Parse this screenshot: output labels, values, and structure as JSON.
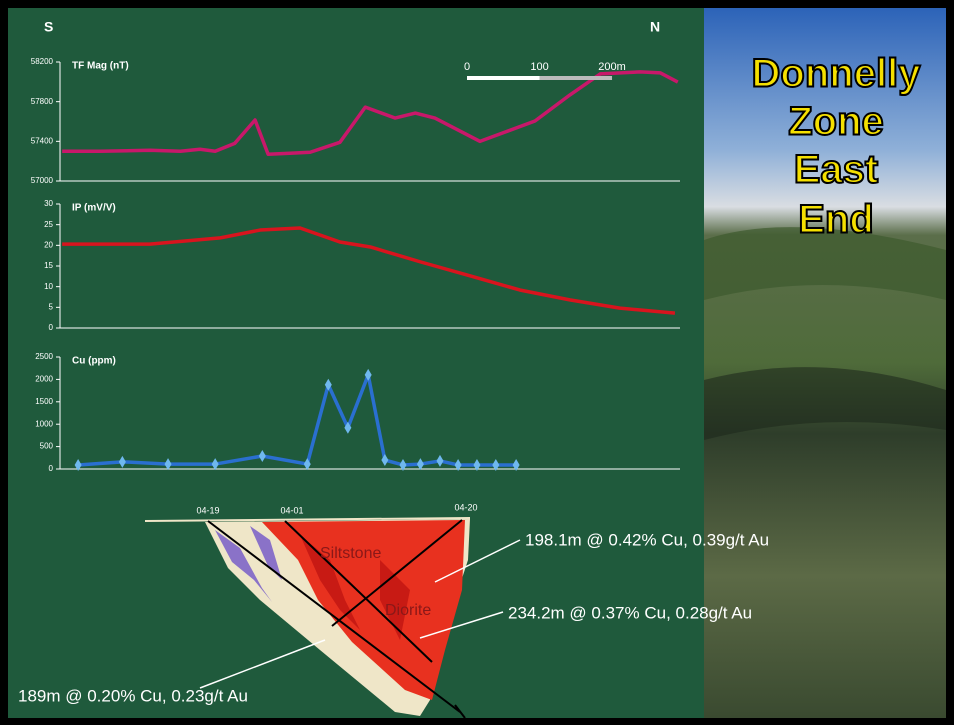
{
  "chart_data": [
    {
      "type": "line",
      "y_label": "TF Mag (nT)",
      "color": "#c8186a",
      "x": [
        3,
        55,
        124,
        166,
        193,
        214,
        241,
        269,
        287,
        317,
        345,
        386,
        421,
        462,
        490,
        517,
        579,
        607,
        655,
        703,
        745,
        800,
        828,
        852
      ],
      "values": [
        57300,
        57300,
        57310,
        57300,
        57320,
        57300,
        57380,
        57615,
        57270,
        57280,
        57290,
        57390,
        57745,
        57635,
        57685,
        57635,
        57400,
        57475,
        57605,
        57867,
        58080,
        58100,
        58090,
        57998
      ],
      "xlim": [
        0,
        855
      ],
      "ylim": [
        57000,
        58200
      ],
      "yticks": [
        57000,
        57400,
        57800,
        58200
      ],
      "scale_bar": {
        "ticks": [
          0,
          100,
          {
            "value": 200,
            "label": "200m"
          }
        ]
      }
    },
    {
      "type": "line",
      "y_label": "IP (mV/V)",
      "color": "#d8141e",
      "x": [
        3,
        124,
        221,
        276,
        331,
        386,
        428,
        497,
        566,
        634,
        703,
        772,
        848
      ],
      "values": [
        20.3,
        20.3,
        21.8,
        23.7,
        24.2,
        20.8,
        19.6,
        16,
        12.6,
        9.2,
        6.8,
        4.8,
        3.6
      ],
      "xlim": [
        0,
        855
      ],
      "ylim": [
        0,
        30
      ],
      "yticks": [
        0,
        5,
        10,
        15,
        20,
        25,
        30
      ]
    },
    {
      "type": "line",
      "y_label": "Cu (ppm)",
      "color": "#2a6fd0",
      "marker": "diamond",
      "marker_color": "#6fb8ee",
      "x": [
        25,
        86,
        149,
        214,
        279,
        341,
        370,
        397,
        425,
        448,
        473,
        497,
        524,
        549,
        575,
        601,
        629
      ],
      "values": [
        90,
        160,
        110,
        110,
        290,
        110,
        1880,
        920,
        2100,
        200,
        90,
        110,
        180,
        90,
        90,
        90,
        90
      ],
      "xlim": [
        0,
        855
      ],
      "ylim": [
        0,
        2500
      ],
      "yticks": [
        0,
        500,
        1000,
        1500,
        2000,
        2500
      ]
    }
  ],
  "slide": {
    "title_lines": [
      "Donnelly",
      "Zone",
      "East",
      "End"
    ],
    "direction_left": "S",
    "direction_right": "N"
  },
  "section": {
    "holes": [
      "04-19",
      "04-01",
      "04-20"
    ],
    "rocks": [
      "Siltstone",
      "Diorite"
    ],
    "intercepts": [
      "198.1m @ 0.42% Cu, 0.39g/t Au",
      "234.2m @ 0.37% Cu, 0.28g/t Au",
      "189m @ 0.20% Cu, 0.23g/t Au"
    ]
  }
}
